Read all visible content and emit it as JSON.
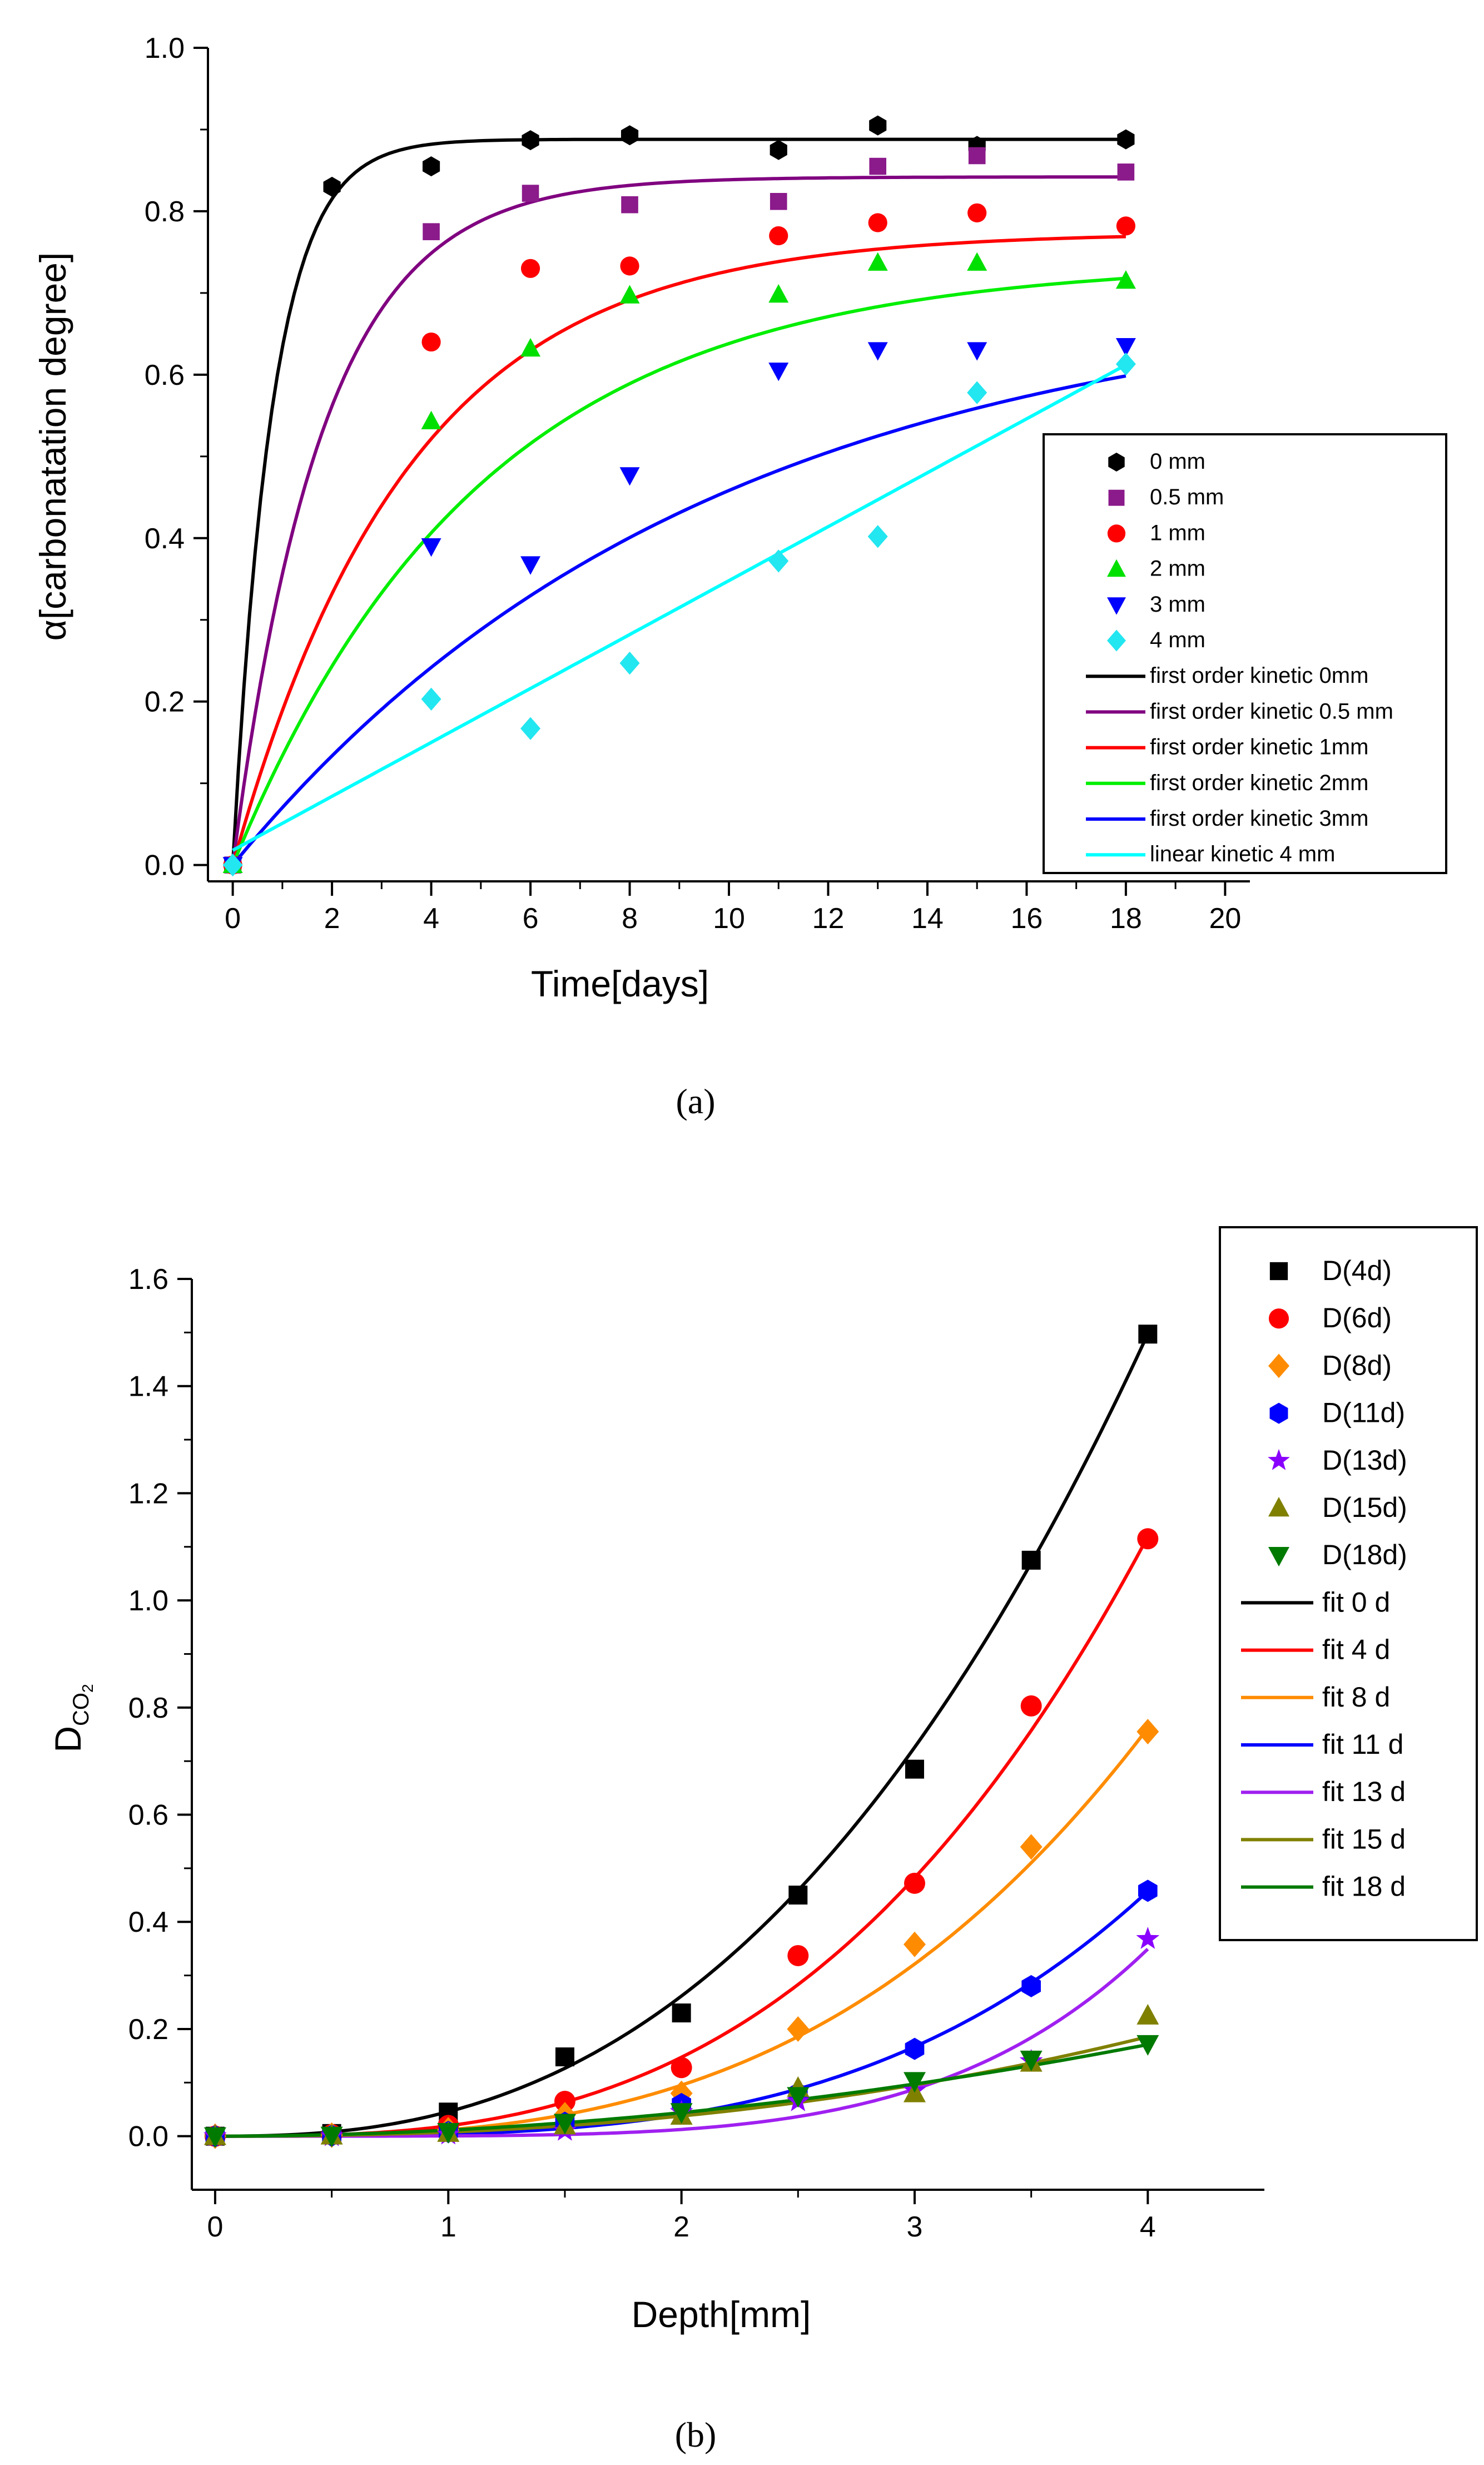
{
  "chart_data": [
    {
      "panel_label": "(a)",
      "type": "scatter",
      "xlabel": "Time[days]",
      "ylabel": "α[carbonatation degree]",
      "xlim": [
        -0.5,
        20.5
      ],
      "ylim": [
        -0.02,
        1.0
      ],
      "xticks": [
        0,
        2,
        4,
        6,
        8,
        10,
        12,
        14,
        16,
        18,
        20
      ],
      "yticks": [
        0.0,
        0.2,
        0.4,
        0.6,
        0.8,
        1.0
      ],
      "ytick_labels": [
        "0.0",
        "0.2",
        "0.4",
        "0.6",
        "0.8",
        "1.0"
      ],
      "legend_position": "center-right",
      "series": [
        {
          "name": "0 mm",
          "marker": "hexagon",
          "color": "#000000",
          "x": [
            0,
            2,
            4,
            6,
            8,
            11,
            13,
            15,
            18
          ],
          "y": [
            0.0,
            0.83,
            0.855,
            0.887,
            0.893,
            0.875,
            0.905,
            0.88,
            0.888
          ]
        },
        {
          "name": "0.5 mm",
          "marker": "square",
          "color": "#8b1a8b",
          "x": [
            0,
            4,
            6,
            8,
            11,
            13,
            15,
            18
          ],
          "y": [
            0.0,
            0.775,
            0.822,
            0.808,
            0.812,
            0.855,
            0.868,
            0.848
          ]
        },
        {
          "name": "1 mm",
          "marker": "circle",
          "color": "#ff0000",
          "x": [
            0,
            4,
            6,
            8,
            11,
            13,
            15,
            18
          ],
          "y": [
            0.0,
            0.64,
            0.73,
            0.733,
            0.77,
            0.786,
            0.798,
            0.782
          ]
        },
        {
          "name": "2 mm",
          "marker": "triangle-up",
          "color": "#00e000",
          "x": [
            0,
            4,
            6,
            8,
            11,
            13,
            15,
            18
          ],
          "y": [
            0.0,
            0.543,
            0.632,
            0.697,
            0.698,
            0.737,
            0.737,
            0.715
          ]
        },
        {
          "name": "3 mm",
          "marker": "triangle-down",
          "color": "#0000ff",
          "x": [
            0,
            4,
            6,
            8,
            11,
            13,
            15,
            18
          ],
          "y": [
            0.0,
            0.39,
            0.368,
            0.477,
            0.605,
            0.63,
            0.63,
            0.635
          ]
        },
        {
          "name": "4 mm",
          "marker": "diamond",
          "color": "#22e6f0",
          "x": [
            0,
            4,
            6,
            8,
            11,
            13,
            15,
            18
          ],
          "y": [
            0.0,
            0.203,
            0.167,
            0.247,
            0.372,
            0.402,
            0.578,
            0.613
          ]
        }
      ],
      "fits": [
        {
          "name": "first order kinetic 0mm",
          "color": "#000000",
          "model": "first_order",
          "a": 0.888,
          "k": 1.25
        },
        {
          "name": "first order kinetic 0.5 mm",
          "color": "#800080",
          "model": "first_order",
          "a": 0.842,
          "k": 0.55
        },
        {
          "name": "first order kinetic 1mm",
          "color": "#ff0000",
          "model": "first_order",
          "a": 0.774,
          "k": 0.28
        },
        {
          "name": "first order kinetic 2mm",
          "color": "#00ee00",
          "model": "first_order",
          "a": 0.738,
          "k": 0.2
        },
        {
          "name": "first order kinetic 3mm",
          "color": "#0000ff",
          "model": "first_order",
          "a": 0.705,
          "k": 0.105
        },
        {
          "name": "linear kinetic 4 mm",
          "color": "#00ffff",
          "model": "linear",
          "intercept": 0.018,
          "slope": 0.033
        }
      ]
    },
    {
      "panel_label": "(b)",
      "type": "scatter",
      "xlabel": "Depth[mm]",
      "ylabel": "D",
      "ylabel_subscript": "CO",
      "ylabel_subsub": "2",
      "xlim": [
        -0.1,
        4.5
      ],
      "ylim": [
        -0.1,
        1.6
      ],
      "xticks": [
        0,
        1,
        2,
        3,
        4
      ],
      "yticks": [
        0.0,
        0.2,
        0.4,
        0.6,
        0.8,
        1.0,
        1.2,
        1.4,
        1.6
      ],
      "ytick_labels": [
        "0.0",
        "0.2",
        "0.4",
        "0.6",
        "0.8",
        "1.0",
        "1.2",
        "1.4",
        "1.6"
      ],
      "legend_position": "top-right outside",
      "series": [
        {
          "name": "D(4d)",
          "marker": "square",
          "color": "#000000",
          "x": [
            0,
            0.5,
            1,
            1.5,
            2,
            2.5,
            3,
            3.5,
            4
          ],
          "y": [
            0.0,
            0.005,
            0.045,
            0.148,
            0.23,
            0.45,
            0.685,
            1.075,
            1.497
          ]
        },
        {
          "name": "D(6d)",
          "marker": "circle",
          "color": "#ff0000",
          "x": [
            0,
            0.5,
            1,
            1.5,
            2,
            2.5,
            3,
            3.5,
            4
          ],
          "y": [
            0.0,
            0.003,
            0.02,
            0.065,
            0.128,
            0.337,
            0.472,
            0.803,
            1.115
          ]
        },
        {
          "name": "D(8d)",
          "marker": "diamond",
          "color": "#ff8c00",
          "x": [
            0,
            0.5,
            1,
            1.5,
            2,
            2.5,
            3,
            3.5,
            4
          ],
          "y": [
            0.0,
            0.002,
            0.012,
            0.04,
            0.08,
            0.2,
            0.358,
            0.54,
            0.755
          ]
        },
        {
          "name": "D(11d)",
          "marker": "hexagon",
          "color": "#0000ff",
          "x": [
            0,
            0.5,
            1,
            1.5,
            2,
            2.5,
            3,
            3.5,
            4
          ],
          "y": [
            0.0,
            0.001,
            0.008,
            0.025,
            0.06,
            0.08,
            0.163,
            0.28,
            0.458
          ]
        },
        {
          "name": "D(13d)",
          "marker": "star",
          "color": "#8a00ff",
          "x": [
            0,
            0.5,
            1,
            1.5,
            2,
            2.5,
            3,
            3.5,
            4
          ],
          "y": [
            0.0,
            0.0,
            0.003,
            0.01,
            0.045,
            0.065,
            0.085,
            0.14,
            0.368
          ]
        },
        {
          "name": "D(15d)",
          "marker": "triangle-up",
          "color": "#808000",
          "x": [
            0,
            0.5,
            1,
            1.5,
            2,
            2.5,
            3,
            3.5,
            4
          ],
          "y": [
            0.0,
            0.001,
            0.006,
            0.02,
            0.038,
            0.09,
            0.08,
            0.137,
            0.225
          ]
        },
        {
          "name": "D(18d)",
          "marker": "triangle-down",
          "color": "#007a00",
          "x": [
            0,
            0.5,
            1,
            1.5,
            2,
            2.5,
            3,
            3.5,
            4
          ],
          "y": [
            0.0,
            0.001,
            0.008,
            0.025,
            0.045,
            0.075,
            0.103,
            0.143,
            0.172
          ]
        }
      ],
      "fits": [
        {
          "name": "fit 0 d",
          "color": "#000000",
          "model": "power",
          "a": 0.0457,
          "p": 2.517
        },
        {
          "name": "fit 4 d",
          "color": "#ff0000",
          "model": "power",
          "a": 0.0194,
          "p": 2.925
        },
        {
          "name": "fit 8 d",
          "color": "#ff8c00",
          "model": "power",
          "a": 0.0119,
          "p": 3.0
        },
        {
          "name": "fit 11 d",
          "color": "#0000ff",
          "model": "power",
          "a": 0.00357,
          "p": 3.5
        },
        {
          "name": "fit 13 d",
          "color": "#a020f0",
          "model": "power",
          "a": 0.00045,
          "p": 4.8
        },
        {
          "name": "fit 15 d",
          "color": "#808000",
          "model": "power",
          "a": 0.00765,
          "p": 2.3
        },
        {
          "name": "fit 18 d",
          "color": "#007a00",
          "model": "power",
          "a": 0.0113,
          "p": 1.96
        }
      ]
    }
  ]
}
